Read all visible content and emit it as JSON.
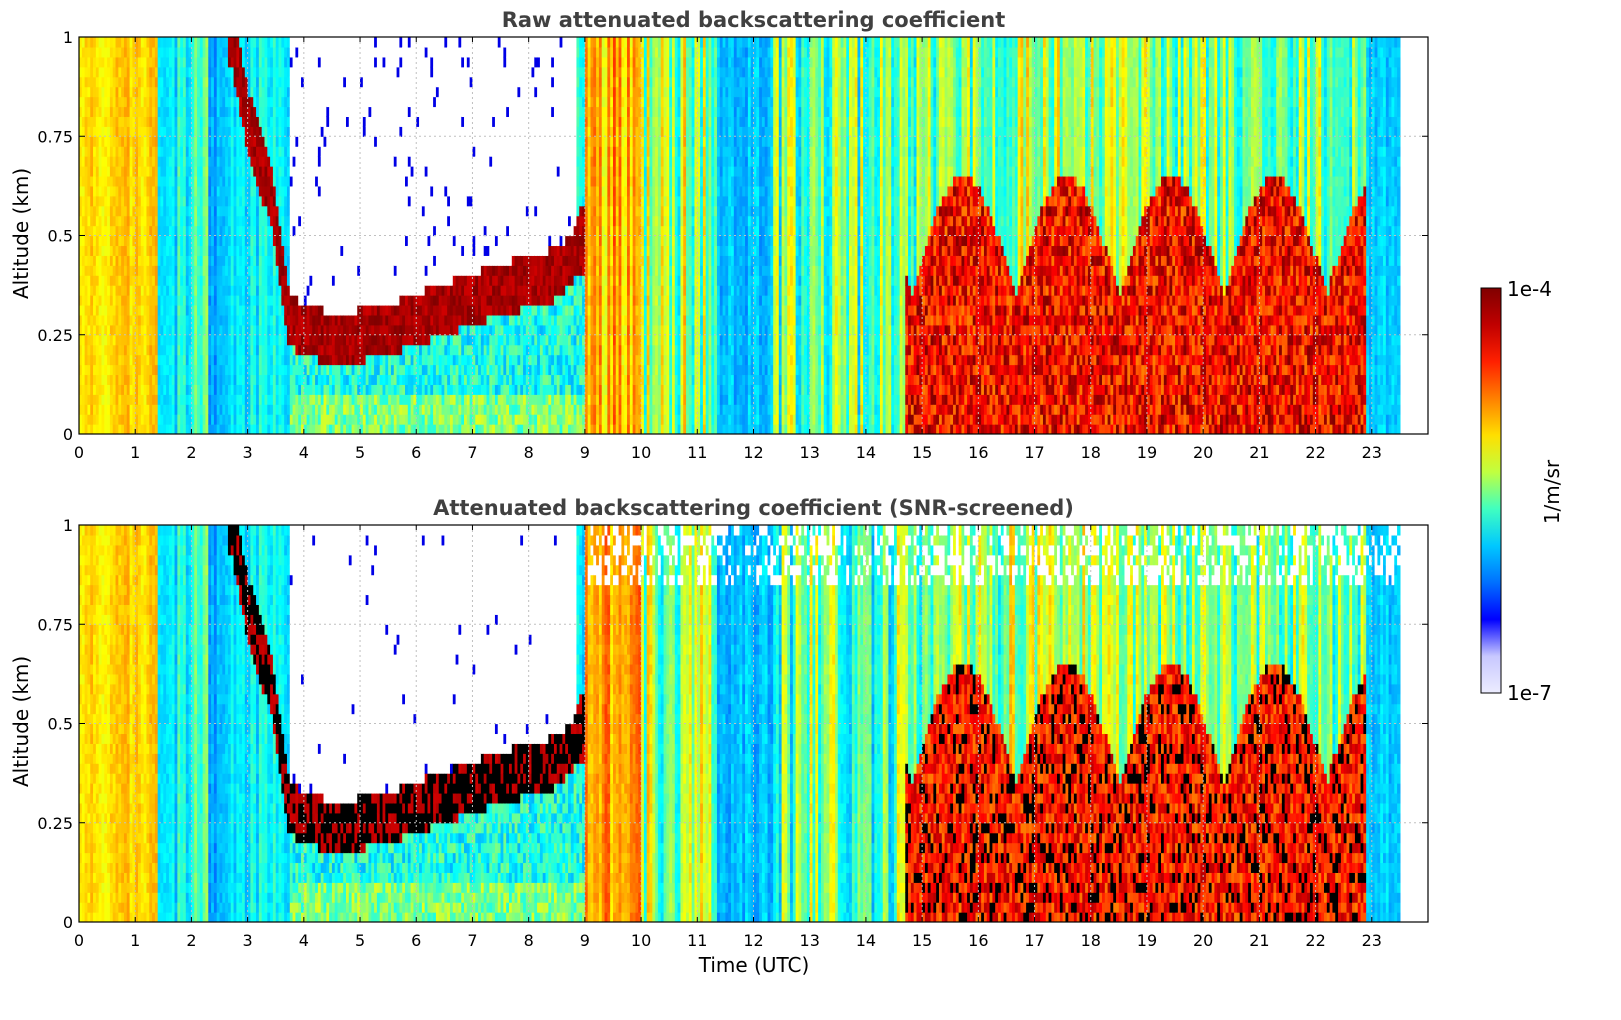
{
  "chart_data": [
    {
      "type": "heatmap",
      "title": "Raw attenuated backscattering coefficient",
      "xlabel": "",
      "ylabel": "Altitude (km)",
      "xlim": [
        0,
        24
      ],
      "ylim": [
        0,
        1
      ],
      "xticks": [
        "0",
        "1",
        "2",
        "3",
        "4",
        "5",
        "6",
        "7",
        "8",
        "9",
        "10",
        "11",
        "12",
        "13",
        "14",
        "15",
        "16",
        "17",
        "18",
        "19",
        "20",
        "21",
        "22",
        "23"
      ],
      "yticks": [
        "0",
        "0.25",
        "0.5",
        "0.75",
        "1"
      ],
      "data_extent_x": [
        0,
        23.5
      ],
      "grid": true,
      "colormap": "jet",
      "color_scale": "log",
      "cbar_range": [
        1e-07,
        0.0001
      ],
      "cbar_label": "1/m/sr",
      "boundary_layer_top_km": [
        {
          "x": 2.7,
          "y": 1.0
        },
        {
          "x": 3.0,
          "y": 0.78
        },
        {
          "x": 3.4,
          "y": 0.6
        },
        {
          "x": 3.7,
          "y": 0.3
        },
        {
          "x": 4.5,
          "y": 0.25
        },
        {
          "x": 5.5,
          "y": 0.28
        },
        {
          "x": 6.5,
          "y": 0.33
        },
        {
          "x": 7.5,
          "y": 0.38
        },
        {
          "x": 8.5,
          "y": 0.42
        },
        {
          "x": 9.0,
          "y": 0.5
        }
      ]
    },
    {
      "type": "heatmap",
      "title": "Attenuated backscattering coefficient (SNR-screened)",
      "xlabel": "Time (UTC)",
      "ylabel": "Altitude (km)",
      "xlim": [
        0,
        24
      ],
      "ylim": [
        0,
        1
      ],
      "xticks": [
        "0",
        "1",
        "2",
        "3",
        "4",
        "5",
        "6",
        "7",
        "8",
        "9",
        "10",
        "11",
        "12",
        "13",
        "14",
        "15",
        "16",
        "17",
        "18",
        "19",
        "20",
        "21",
        "22",
        "23"
      ],
      "yticks": [
        "0",
        "0.25",
        "0.5",
        "0.75",
        "1"
      ],
      "data_extent_x": [
        0,
        23.5
      ],
      "grid": true,
      "colormap": "jet",
      "color_scale": "log",
      "cbar_range": [
        1e-07,
        0.0001
      ],
      "cbar_label": "1/m/sr",
      "screened_color": "#ffffff",
      "saturated_color": "#000000"
    }
  ],
  "colorbar": {
    "max_label": "1e-4",
    "min_label": "1e-7",
    "unit_label": "1/m/sr",
    "colors": [
      "#ececff",
      "#c8c8ff",
      "#0000ff",
      "#0070ff",
      "#00c8ff",
      "#40ffc0",
      "#c0ff40",
      "#ffdf00",
      "#ff8000",
      "#ff2000",
      "#c00000",
      "#800000"
    ]
  }
}
